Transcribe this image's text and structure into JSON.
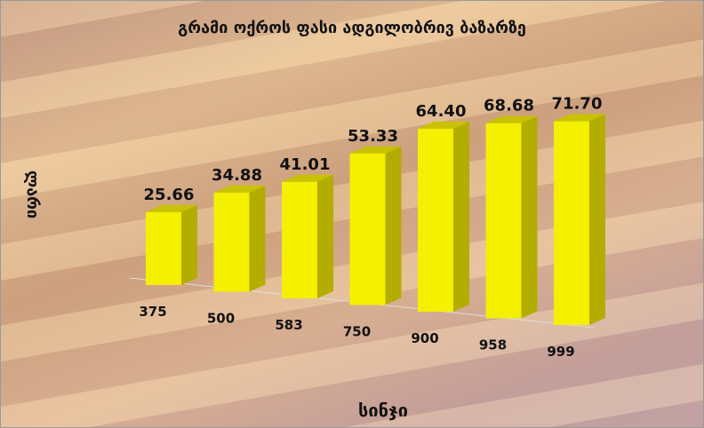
{
  "chart_data": {
    "type": "bar",
    "title": "გრამი ოქროს ფასი ადგილობრივ ბაზარზე",
    "xlabel": "სინჯი",
    "ylabel": "ლარი",
    "categories": [
      "375",
      "500",
      "583",
      "750",
      "900",
      "958",
      "999"
    ],
    "values": [
      25.66,
      34.88,
      41.01,
      53.33,
      64.4,
      68.68,
      71.7
    ],
    "value_labels": [
      "25.66",
      "34.88",
      "41.01",
      "53.33",
      "64.40",
      "68.68",
      "71.70"
    ],
    "style": "3d-column",
    "grid": false,
    "legend": "none",
    "colors": {
      "front": "#f5ef00",
      "side": "#b3ad00",
      "top": "#c8c200"
    }
  }
}
